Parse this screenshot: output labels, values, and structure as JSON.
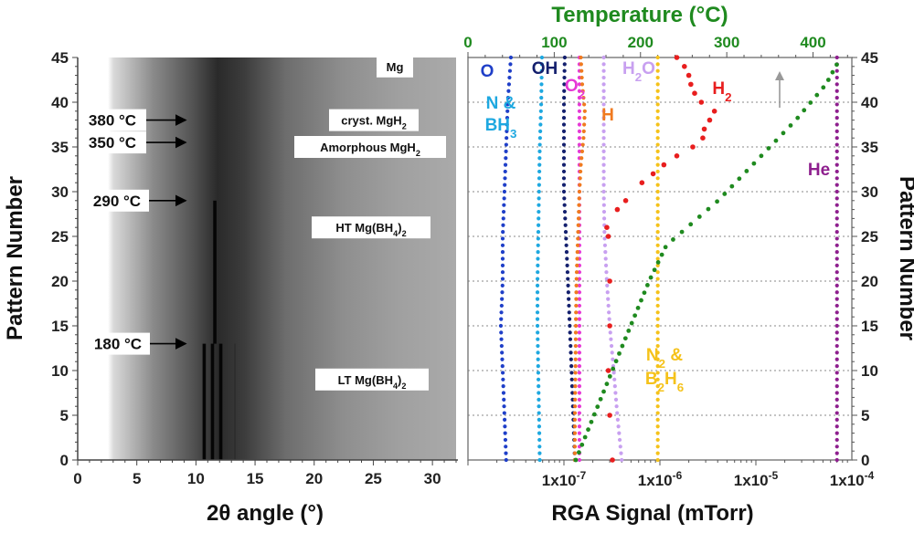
{
  "chart_data": [
    {
      "type": "heatmap",
      "title": "",
      "xlabel": "2θ angle (°)",
      "ylabel": "Pattern Number",
      "xlim": [
        0,
        32
      ],
      "ylim": [
        0,
        45
      ],
      "x_ticks": [
        "0",
        "5",
        "10",
        "15",
        "20",
        "25",
        "30"
      ],
      "y_ticks": [
        "0",
        "5",
        "10",
        "15",
        "20",
        "25",
        "30",
        "35",
        "40",
        "45"
      ],
      "phase_labels": [
        {
          "pattern": 44,
          "text": "Mg",
          "text_main": "Mg",
          "text_sub": ""
        },
        {
          "pattern": 38,
          "text": "cryst. MgH2",
          "text_main": "cryst. MgH",
          "text_sub": "2",
          "text_tail": ""
        },
        {
          "pattern": 35,
          "text": "Amorphous MgH2",
          "text_main": "Amorphous MgH",
          "text_sub": "2",
          "text_tail": ""
        },
        {
          "pattern": 26,
          "text": "HT Mg(BH4)2",
          "text_main": "HT Mg(BH",
          "text_sub": "4",
          "text_tail": ")",
          "text_sub2": "2"
        },
        {
          "pattern": 9,
          "text": "LT Mg(BH4)2",
          "text_main": "LT Mg(BH",
          "text_sub": "4",
          "text_tail": ")",
          "text_sub2": "2"
        }
      ],
      "temperature_markers": [
        {
          "label": "380 °C",
          "pattern": 38
        },
        {
          "label": "350 °C",
          "pattern": 35.5
        },
        {
          "label": "290 °C",
          "pattern": 29
        },
        {
          "label": "180 °C",
          "pattern": 13
        }
      ],
      "diffraction_lines": [
        {
          "two_theta": 10.7,
          "from": 0,
          "to": 13,
          "intensity": "strong"
        },
        {
          "two_theta": 11.4,
          "from": 0,
          "to": 13,
          "intensity": "strong"
        },
        {
          "two_theta": 12.1,
          "from": 0,
          "to": 13,
          "intensity": "strong"
        },
        {
          "two_theta": 11.6,
          "from": 13,
          "to": 29,
          "intensity": "strong"
        },
        {
          "two_theta": 13.3,
          "from": 0,
          "to": 13,
          "intensity": "weak"
        }
      ]
    },
    {
      "type": "scatter",
      "title": "",
      "xlabel": "RGA Signal (mTorr)",
      "ylabel": "Pattern Number",
      "x_scale": "log",
      "xlim": [
        1e-08,
        0.0001
      ],
      "ylim": [
        0,
        45
      ],
      "x_ticks": [
        {
          "value": 1e-07,
          "mant": "1x10",
          "exp": "-7"
        },
        {
          "value": 1e-06,
          "mant": "1x10",
          "exp": "-6"
        },
        {
          "value": 1e-05,
          "mant": "1x10",
          "exp": "-5"
        },
        {
          "value": 0.0001,
          "mant": "1x10",
          "exp": "-4"
        }
      ],
      "y_ticks": [
        "0",
        "5",
        "10",
        "15",
        "20",
        "25",
        "30",
        "35",
        "40",
        "45"
      ],
      "secondary_x": {
        "label": "Temperature (°C)",
        "range": [
          0,
          445
        ],
        "ticks": [
          "0",
          "100",
          "200",
          "300",
          "400"
        ]
      },
      "series": [
        {
          "name": "O",
          "label_main": "O",
          "label_sub": "",
          "color": "#1f3fc8",
          "points": [
            [
              0.0,
              2.5e-08
            ],
            [
              5.0,
              2.4e-08
            ],
            [
              10.0,
              2.3e-08
            ],
            [
              15.0,
              2.2e-08
            ],
            [
              20.0,
              2.3e-08
            ],
            [
              25.0,
              2.3e-08
            ],
            [
              30.0,
              2.4e-08
            ],
            [
              35.0,
              2.5e-08
            ],
            [
              40.0,
              2.6e-08
            ],
            [
              45.0,
              2.8e-08
            ]
          ]
        },
        {
          "name": "N & BH3",
          "label_main": "N &",
          "label_line2": "BH",
          "label_sub": "3",
          "color": "#1ea8e0",
          "points": [
            [
              0.0,
              5.6e-08
            ],
            [
              5.0,
              5.5e-08
            ],
            [
              10.0,
              5.4e-08
            ],
            [
              15.0,
              5.3e-08
            ],
            [
              20.0,
              5.3e-08
            ],
            [
              25.0,
              5.4e-08
            ],
            [
              30.0,
              5.5e-08
            ],
            [
              35.0,
              5.6e-08
            ],
            [
              40.0,
              5.8e-08
            ],
            [
              45.0,
              5.9e-08
            ]
          ]
        },
        {
          "name": "OH",
          "label_main": "OH",
          "label_sub": "",
          "color": "#14206e",
          "points": [
            [
              0.0,
              1.3e-07
            ],
            [
              5.0,
              1.25e-07
            ],
            [
              10.0,
              1.2e-07
            ],
            [
              15.0,
              1.15e-07
            ],
            [
              20.0,
              1.1e-07
            ],
            [
              25.0,
              1.05e-07
            ],
            [
              30.0,
              1e-07
            ],
            [
              35.0,
              1e-07
            ],
            [
              40.0,
              1e-07
            ],
            [
              45.0,
              1.02e-07
            ]
          ]
        },
        {
          "name": "O2",
          "label_main": "O",
          "label_sub": "2",
          "color": "#e639d6",
          "points": [
            [
              0.0,
              1.45e-07
            ],
            [
              5.0,
              1.45e-07
            ],
            [
              10.0,
              1.45e-07
            ],
            [
              15.0,
              1.45e-07
            ],
            [
              20.0,
              1.45e-07
            ],
            [
              25.0,
              1.45e-07
            ],
            [
              30.0,
              1.45e-07
            ],
            [
              35.0,
              1.45e-07
            ],
            [
              40.0,
              1.45e-07
            ],
            [
              45.0,
              1.45e-07
            ]
          ]
        },
        {
          "name": "H",
          "label_main": "H",
          "label_sub": "",
          "color": "#f07a20",
          "points": [
            [
              0.0,
              1.3e-07
            ],
            [
              5.0,
              1.3e-07
            ],
            [
              10.0,
              1.32e-07
            ],
            [
              15.0,
              1.33e-07
            ],
            [
              20.0,
              1.35e-07
            ],
            [
              25.0,
              1.4e-07
            ],
            [
              30.0,
              1.45e-07
            ],
            [
              33.0,
              1.5e-07
            ],
            [
              36.0,
              1.6e-07
            ],
            [
              39.0,
              1.65e-07
            ],
            [
              42.0,
              1.55e-07
            ],
            [
              45.0,
              1.5e-07
            ]
          ]
        },
        {
          "name": "H2O",
          "label_main": "H",
          "label_sub": "2",
          "label_tail": "O",
          "color": "#c8a0f0",
          "points": [
            [
              0.0,
              4e-07
            ],
            [
              5.0,
              3.6e-07
            ],
            [
              10.0,
              3.3e-07
            ],
            [
              15.0,
              3e-07
            ],
            [
              20.0,
              2.8e-07
            ],
            [
              25.0,
              2.65e-07
            ],
            [
              30.0,
              2.6e-07
            ],
            [
              35.0,
              2.6e-07
            ],
            [
              40.0,
              2.6e-07
            ],
            [
              45.0,
              2.6e-07
            ]
          ]
        },
        {
          "name": "N2 & B2H6",
          "label_main": "N",
          "label_sub": "2",
          "label_tail": " &",
          "label_line2": "B",
          "label_sub2": "2",
          "label_tail2": "H",
          "label_sub3": "6",
          "color": "#f5c21a",
          "points": [
            [
              0.0,
              9.5e-07
            ],
            [
              5.0,
              9.5e-07
            ],
            [
              10.0,
              9.5e-07
            ],
            [
              15.0,
              9.5e-07
            ],
            [
              20.0,
              9.5e-07
            ],
            [
              25.0,
              9.5e-07
            ],
            [
              30.0,
              9.5e-07
            ],
            [
              35.0,
              9.5e-07
            ],
            [
              40.0,
              9.5e-07
            ],
            [
              45.0,
              9.5e-07
            ]
          ]
        },
        {
          "name": "H2",
          "label_main": "H",
          "label_sub": "2",
          "color": "#e81e1e",
          "points": [
            [
              0.0,
              3.2e-07
            ],
            [
              5.0,
              3e-07
            ],
            [
              10.0,
              2.9e-07
            ],
            [
              15.0,
              3e-07
            ],
            [
              20.0,
              3e-07
            ],
            [
              25.0,
              2.9e-07
            ],
            [
              26.0,
              2.8e-07
            ],
            [
              28.0,
              3.6e-07
            ],
            [
              29.0,
              4.4e-07
            ],
            [
              31.0,
              6.5e-07
            ],
            [
              32.0,
              8.5e-07
            ],
            [
              33.0,
              1.1e-06
            ],
            [
              34.0,
              1.5e-06
            ],
            [
              35.0,
              2.2e-06
            ],
            [
              36.0,
              2.8e-06
            ],
            [
              37.0,
              2.9e-06
            ],
            [
              38.0,
              3.3e-06
            ],
            [
              39.0,
              3.7e-06
            ],
            [
              40.0,
              2.7e-06
            ],
            [
              41.0,
              2.3e-06
            ],
            [
              42.0,
              2.1e-06
            ],
            [
              43.0,
              2e-06
            ],
            [
              44.0,
              1.8e-06
            ],
            [
              45.0,
              1.5e-06
            ]
          ]
        },
        {
          "name": "He",
          "label_main": "He",
          "label_sub": "",
          "color": "#8e1f8e",
          "points": [
            [
              0.0,
              7e-05
            ],
            [
              5.0,
              7e-05
            ],
            [
              10.0,
              7e-05
            ],
            [
              15.0,
              7e-05
            ],
            [
              20.0,
              7e-05
            ],
            [
              25.0,
              7e-05
            ],
            [
              30.0,
              7e-05
            ],
            [
              35.0,
              7e-05
            ],
            [
              40.0,
              7e-05
            ],
            [
              45.0,
              7e-05
            ]
          ]
        },
        {
          "name": "Temperature",
          "label_main": "",
          "label_sub": "",
          "color": "#1f8a1f",
          "axis": "temperature",
          "points": [
            [
              0.0,
              125
            ],
            [
              13.0,
              180
            ],
            [
              20.0,
              210
            ],
            [
              24.0,
              230
            ],
            [
              29.0,
              290
            ],
            [
              35.0,
              350
            ],
            [
              38.0,
              380
            ],
            [
              42.0,
              415
            ],
            [
              45.0,
              432
            ]
          ]
        }
      ]
    }
  ]
}
